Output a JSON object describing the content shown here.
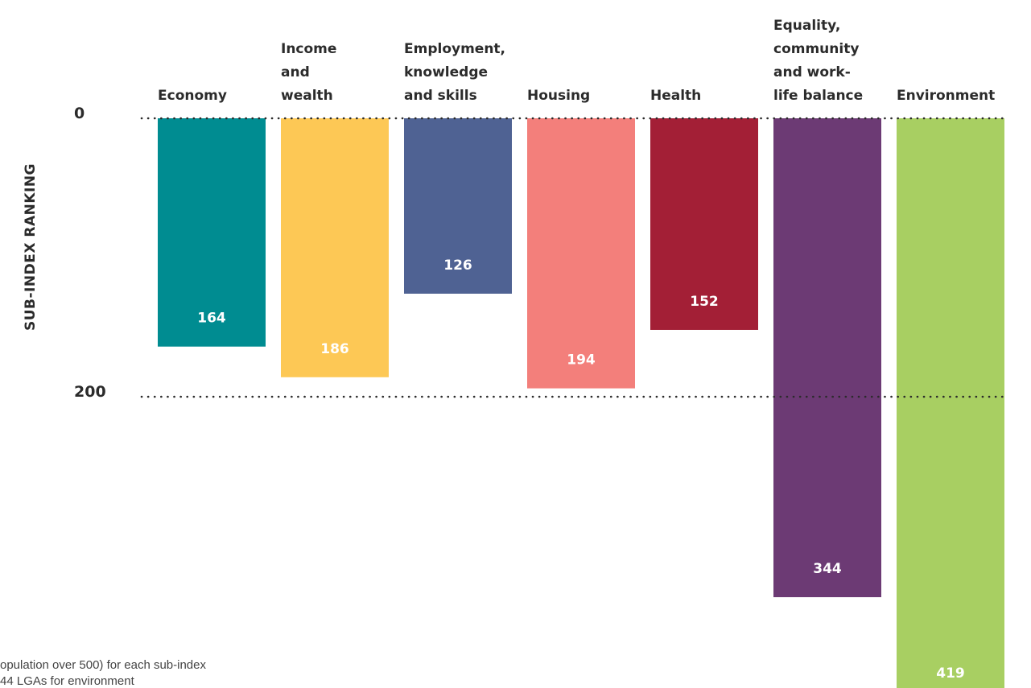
{
  "chart_data": {
    "type": "bar",
    "ylabel": "SUB-INDEX RANKING",
    "y_ticks": [
      "0",
      "200"
    ],
    "ylim": [
      0,
      419
    ],
    "inverted_y": true,
    "categories": [
      [
        "Economy"
      ],
      [
        "Income",
        "and",
        "wealth"
      ],
      [
        "Employment,",
        "knowledge",
        "and skills"
      ],
      [
        "Housing"
      ],
      [
        "Health"
      ],
      [
        "Equality,",
        "community",
        "and work-",
        "life balance"
      ],
      [
        "Environment"
      ]
    ],
    "values": [
      164,
      186,
      126,
      194,
      152,
      344,
      419
    ],
    "value_labels": [
      "164",
      "186",
      "126",
      "194",
      "152",
      "344",
      "419"
    ],
    "colors": [
      "#008c91",
      "#fdc855",
      "#4f6293",
      "#f37f7b",
      "#a31f36",
      "#6c3a74",
      "#a8cf62"
    ],
    "grid_dotted": true
  },
  "footnotes": [
    "opulation over 500) for each sub-index",
    "44 LGAs for environment"
  ]
}
